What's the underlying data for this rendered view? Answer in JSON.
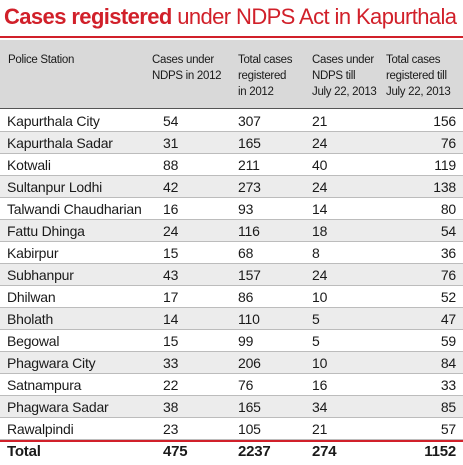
{
  "title": {
    "bold": "Cases registered",
    "rest": "under NDPS Act in Kapurthala"
  },
  "columns": [
    "Police Station",
    "Cases under\nNDPS in 2012",
    "Total cases\nregistered\nin 2012",
    "Cases under\nNDPS till\nJuly 22, 2013",
    "Total cases\nregistered till\nJuly 22, 2013"
  ],
  "rows": [
    [
      "Kapurthala City",
      "54",
      "307",
      "21",
      "156"
    ],
    [
      "Kapurthala Sadar",
      "31",
      "165",
      "24",
      "76"
    ],
    [
      "Kotwali",
      "88",
      "211",
      "40",
      "119"
    ],
    [
      "Sultanpur Lodhi",
      "42",
      "273",
      "24",
      "138"
    ],
    [
      "Talwandi Chaudharian",
      "16",
      "93",
      "14",
      "80"
    ],
    [
      "Fattu Dhinga",
      "24",
      "116",
      "18",
      "54"
    ],
    [
      "Kabirpur",
      "15",
      "68",
      "8",
      "36"
    ],
    [
      "Subhanpur",
      "43",
      "157",
      "24",
      "76"
    ],
    [
      "Dhilwan",
      "17",
      "86",
      "10",
      "52"
    ],
    [
      "Bholath",
      "14",
      "110",
      "5",
      "47"
    ],
    [
      "Begowal",
      "15",
      "99",
      "5",
      "59"
    ],
    [
      "Phagwara City",
      "33",
      "206",
      "10",
      "84"
    ],
    [
      "Satnampura",
      "22",
      "76",
      "16",
      "33"
    ],
    [
      "Phagwara Sadar",
      "38",
      "165",
      "34",
      "85"
    ],
    [
      "Rawalpindi",
      "23",
      "105",
      "21",
      "57"
    ]
  ],
  "total": [
    "Total",
    "475",
    "2237",
    "274",
    "1152"
  ],
  "colors": {
    "accent": "#d1202a",
    "header_bg": "#d9d9d9",
    "row_shade": "#ececec"
  }
}
